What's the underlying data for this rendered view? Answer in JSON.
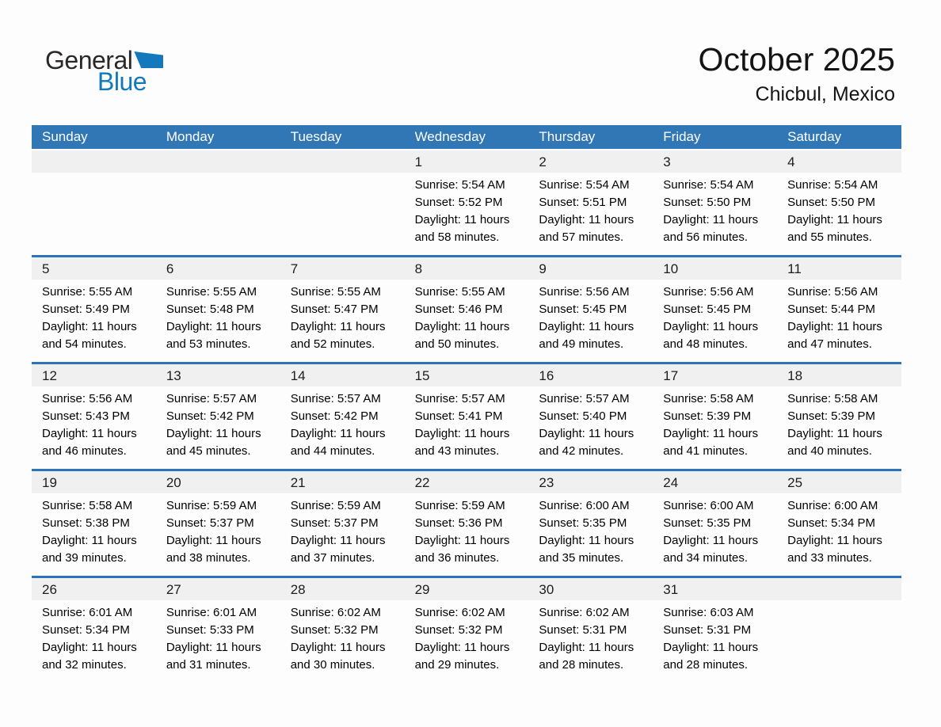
{
  "logo": {
    "general": "General",
    "blue": "Blue",
    "triangle_icon": "flag-triangle",
    "colors": {
      "general_text": "#2b2728",
      "blue_text": "#1478bd"
    }
  },
  "header": {
    "title": "October 2025",
    "subtitle": "Chicbul, Mexico"
  },
  "colors": {
    "header_bar_bg": "#3177b6",
    "header_bar_text": "#ffffff",
    "week_separator": "#2c73ba",
    "day_number_strip_bg": "#f0f0f0",
    "body_text": "#000000"
  },
  "calendar": {
    "day_headers": [
      "Sunday",
      "Monday",
      "Tuesday",
      "Wednesday",
      "Thursday",
      "Friday",
      "Saturday"
    ],
    "weeks": [
      [
        null,
        null,
        null,
        {
          "day": "1",
          "lines": [
            "Sunrise: 5:54 AM",
            "Sunset: 5:52 PM",
            "Daylight: 11 hours",
            "and 58 minutes."
          ]
        },
        {
          "day": "2",
          "lines": [
            "Sunrise: 5:54 AM",
            "Sunset: 5:51 PM",
            "Daylight: 11 hours",
            "and 57 minutes."
          ]
        },
        {
          "day": "3",
          "lines": [
            "Sunrise: 5:54 AM",
            "Sunset: 5:50 PM",
            "Daylight: 11 hours",
            "and 56 minutes."
          ]
        },
        {
          "day": "4",
          "lines": [
            "Sunrise: 5:54 AM",
            "Sunset: 5:50 PM",
            "Daylight: 11 hours",
            "and 55 minutes."
          ]
        }
      ],
      [
        {
          "day": "5",
          "lines": [
            "Sunrise: 5:55 AM",
            "Sunset: 5:49 PM",
            "Daylight: 11 hours",
            "and 54 minutes."
          ]
        },
        {
          "day": "6",
          "lines": [
            "Sunrise: 5:55 AM",
            "Sunset: 5:48 PM",
            "Daylight: 11 hours",
            "and 53 minutes."
          ]
        },
        {
          "day": "7",
          "lines": [
            "Sunrise: 5:55 AM",
            "Sunset: 5:47 PM",
            "Daylight: 11 hours",
            "and 52 minutes."
          ]
        },
        {
          "day": "8",
          "lines": [
            "Sunrise: 5:55 AM",
            "Sunset: 5:46 PM",
            "Daylight: 11 hours",
            "and 50 minutes."
          ]
        },
        {
          "day": "9",
          "lines": [
            "Sunrise: 5:56 AM",
            "Sunset: 5:45 PM",
            "Daylight: 11 hours",
            "and 49 minutes."
          ]
        },
        {
          "day": "10",
          "lines": [
            "Sunrise: 5:56 AM",
            "Sunset: 5:45 PM",
            "Daylight: 11 hours",
            "and 48 minutes."
          ]
        },
        {
          "day": "11",
          "lines": [
            "Sunrise: 5:56 AM",
            "Sunset: 5:44 PM",
            "Daylight: 11 hours",
            "and 47 minutes."
          ]
        }
      ],
      [
        {
          "day": "12",
          "lines": [
            "Sunrise: 5:56 AM",
            "Sunset: 5:43 PM",
            "Daylight: 11 hours",
            "and 46 minutes."
          ]
        },
        {
          "day": "13",
          "lines": [
            "Sunrise: 5:57 AM",
            "Sunset: 5:42 PM",
            "Daylight: 11 hours",
            "and 45 minutes."
          ]
        },
        {
          "day": "14",
          "lines": [
            "Sunrise: 5:57 AM",
            "Sunset: 5:42 PM",
            "Daylight: 11 hours",
            "and 44 minutes."
          ]
        },
        {
          "day": "15",
          "lines": [
            "Sunrise: 5:57 AM",
            "Sunset: 5:41 PM",
            "Daylight: 11 hours",
            "and 43 minutes."
          ]
        },
        {
          "day": "16",
          "lines": [
            "Sunrise: 5:57 AM",
            "Sunset: 5:40 PM",
            "Daylight: 11 hours",
            "and 42 minutes."
          ]
        },
        {
          "day": "17",
          "lines": [
            "Sunrise: 5:58 AM",
            "Sunset: 5:39 PM",
            "Daylight: 11 hours",
            "and 41 minutes."
          ]
        },
        {
          "day": "18",
          "lines": [
            "Sunrise: 5:58 AM",
            "Sunset: 5:39 PM",
            "Daylight: 11 hours",
            "and 40 minutes."
          ]
        }
      ],
      [
        {
          "day": "19",
          "lines": [
            "Sunrise: 5:58 AM",
            "Sunset: 5:38 PM",
            "Daylight: 11 hours",
            "and 39 minutes."
          ]
        },
        {
          "day": "20",
          "lines": [
            "Sunrise: 5:59 AM",
            "Sunset: 5:37 PM",
            "Daylight: 11 hours",
            "and 38 minutes."
          ]
        },
        {
          "day": "21",
          "lines": [
            "Sunrise: 5:59 AM",
            "Sunset: 5:37 PM",
            "Daylight: 11 hours",
            "and 37 minutes."
          ]
        },
        {
          "day": "22",
          "lines": [
            "Sunrise: 5:59 AM",
            "Sunset: 5:36 PM",
            "Daylight: 11 hours",
            "and 36 minutes."
          ]
        },
        {
          "day": "23",
          "lines": [
            "Sunrise: 6:00 AM",
            "Sunset: 5:35 PM",
            "Daylight: 11 hours",
            "and 35 minutes."
          ]
        },
        {
          "day": "24",
          "lines": [
            "Sunrise: 6:00 AM",
            "Sunset: 5:35 PM",
            "Daylight: 11 hours",
            "and 34 minutes."
          ]
        },
        {
          "day": "25",
          "lines": [
            "Sunrise: 6:00 AM",
            "Sunset: 5:34 PM",
            "Daylight: 11 hours",
            "and 33 minutes."
          ]
        }
      ],
      [
        {
          "day": "26",
          "lines": [
            "Sunrise: 6:01 AM",
            "Sunset: 5:34 PM",
            "Daylight: 11 hours",
            "and 32 minutes."
          ]
        },
        {
          "day": "27",
          "lines": [
            "Sunrise: 6:01 AM",
            "Sunset: 5:33 PM",
            "Daylight: 11 hours",
            "and 31 minutes."
          ]
        },
        {
          "day": "28",
          "lines": [
            "Sunrise: 6:02 AM",
            "Sunset: 5:32 PM",
            "Daylight: 11 hours",
            "and 30 minutes."
          ]
        },
        {
          "day": "29",
          "lines": [
            "Sunrise: 6:02 AM",
            "Sunset: 5:32 PM",
            "Daylight: 11 hours",
            "and 29 minutes."
          ]
        },
        {
          "day": "30",
          "lines": [
            "Sunrise: 6:02 AM",
            "Sunset: 5:31 PM",
            "Daylight: 11 hours",
            "and 28 minutes."
          ]
        },
        {
          "day": "31",
          "lines": [
            "Sunrise: 6:03 AM",
            "Sunset: 5:31 PM",
            "Daylight: 11 hours",
            "and 28 minutes."
          ]
        },
        null
      ]
    ]
  }
}
